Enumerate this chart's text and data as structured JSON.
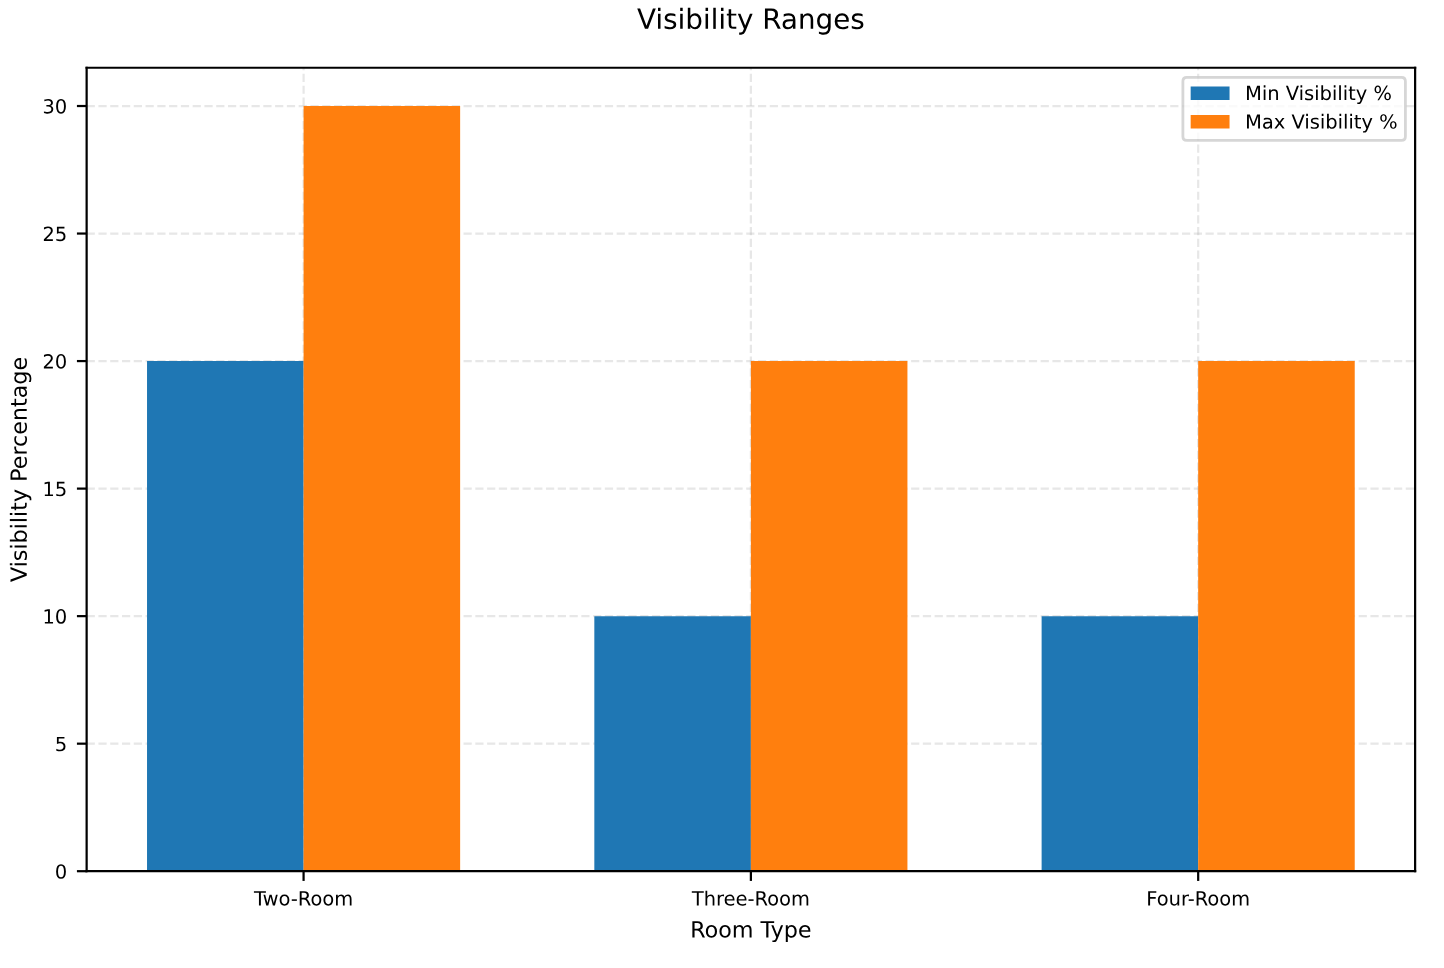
{
  "chart_data": {
    "type": "bar",
    "title": "Visibility Ranges",
    "xlabel": "Room Type",
    "ylabel": "Visibility Percentage",
    "categories": [
      "Two-Room",
      "Three-Room",
      "Four-Room"
    ],
    "series": [
      {
        "name": "Min Visibility %",
        "color": "#1f77b4",
        "values": [
          20,
          10,
          10
        ]
      },
      {
        "name": "Max Visibility %",
        "color": "#ff7f0e",
        "values": [
          30,
          20,
          20
        ]
      }
    ],
    "ylim": [
      0,
      31.5
    ],
    "yticks": [
      0,
      5,
      10,
      15,
      20,
      25,
      30
    ],
    "grid": true,
    "legend": "top right"
  }
}
